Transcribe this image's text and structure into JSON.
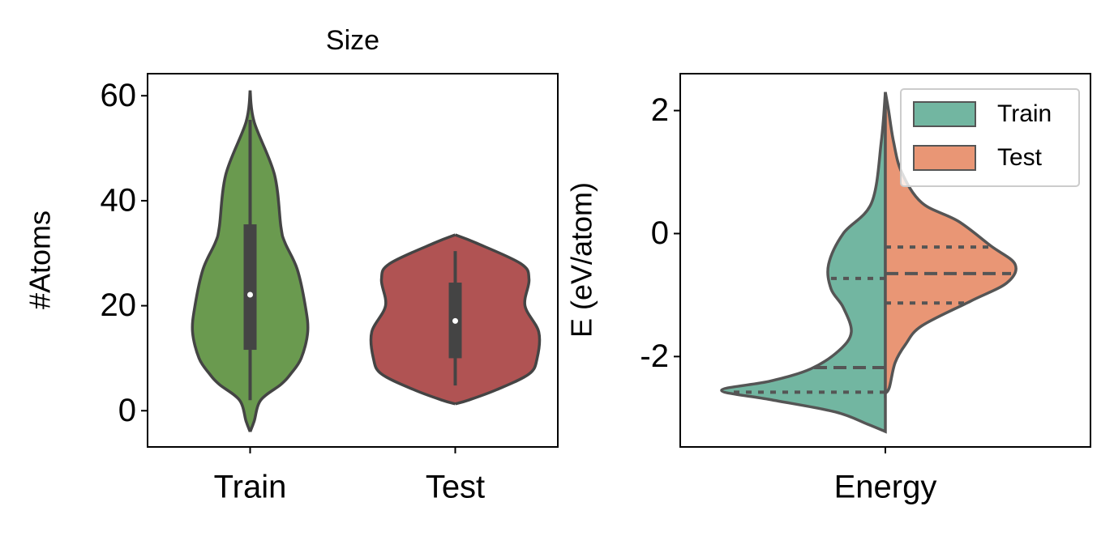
{
  "chart_data": [
    {
      "type": "violin",
      "title": "Size",
      "ylabel": "#Atoms",
      "categories": [
        "Train",
        "Test"
      ],
      "ylim": [
        -6.9,
        64.2
      ],
      "yticks": [
        0,
        20,
        40,
        60
      ],
      "violins": [
        {
          "color": "#6a9a4f",
          "density_y": [
            61,
            55,
            45,
            35,
            32,
            27,
            20,
            15,
            10,
            7,
            5,
            2,
            -2,
            -4
          ],
          "density": [
            0,
            5,
            30,
            38,
            43,
            58,
            68,
            71,
            63,
            50,
            38,
            13,
            5,
            0
          ],
          "whisker_low": 2,
          "q1": 11.6,
          "median": 22.1,
          "q3": 35.5,
          "whisker_high": 55.4
        },
        {
          "color": "#b05353",
          "density_y": [
            33.5,
            32,
            28,
            25,
            20,
            15,
            10,
            7,
            4,
            2,
            1.3
          ],
          "density": [
            0,
            25,
            81,
            91,
            86,
            103,
            101,
            91,
            51,
            16,
            0
          ],
          "whisker_low": 4.8,
          "q1": 10.0,
          "median": 17.1,
          "q3": 24.4,
          "whisker_high": 30.4
        }
      ]
    },
    {
      "type": "split_violin",
      "ylabel": "E (eV/atom)",
      "categories": [
        "Energy"
      ],
      "ylim": [
        -3.47,
        2.6
      ],
      "yticks": [
        2,
        0,
        -2
      ],
      "legend": "upper right",
      "series": [
        {
          "name": "Train",
          "color": "#72b6a1",
          "density_y": [
            2.3,
            1.5,
            0.5,
            0,
            -0.5,
            -0.9,
            -1.2,
            -1.6,
            -1.9,
            -2.2,
            -2.4,
            -2.55,
            -2.7,
            -2.9,
            -3.1,
            -3.22
          ],
          "density": [
            0,
            5,
            17,
            52,
            70,
            67,
            52,
            42,
            57,
            92,
            142,
            202,
            142,
            62,
            22,
            0
          ],
          "q1": -2.58,
          "median": -2.18,
          "q3": -0.73
        },
        {
          "name": "Test",
          "color": "#e99675",
          "density_y": [
            2.3,
            2,
            1.5,
            1,
            0.5,
            0.2,
            -0.2,
            -0.5,
            -0.8,
            -1.1,
            -1.5,
            -1.8,
            -2.1,
            -2.5,
            -2.6
          ],
          "density": [
            0,
            4,
            10,
            20,
            45,
            90,
            130,
            160,
            150,
            105,
            45,
            25,
            12,
            5,
            0
          ],
          "q1": -1.13,
          "median": -0.65,
          "q3": -0.22
        }
      ]
    }
  ]
}
